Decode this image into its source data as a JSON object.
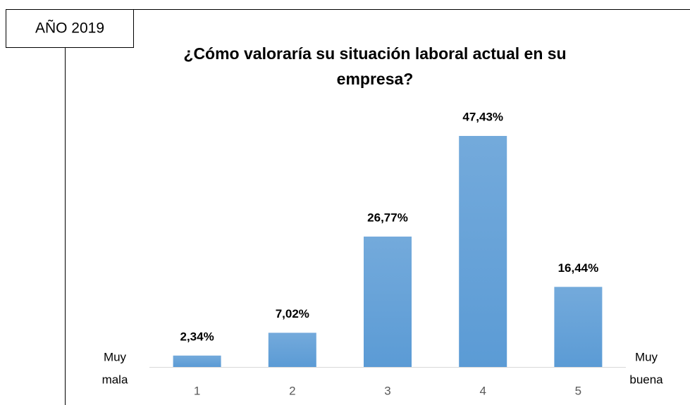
{
  "chart_data": {
    "type": "bar",
    "title": [
      "¿Cómo valoraría su situación laboral actual en su",
      "empresa?"
    ],
    "categories": [
      "1",
      "2",
      "3",
      "4",
      "5"
    ],
    "values": [
      2.34,
      7.02,
      26.77,
      47.43,
      16.44
    ],
    "value_labels": [
      "2,34%",
      "7,02%",
      "26,77%",
      "47,43%",
      "16,44%"
    ],
    "color": "#5b9bd5",
    "annotations": {
      "box": "AÑO 2019",
      "low": [
        "Muy",
        "mala"
      ],
      "high": [
        "Muy",
        "buena"
      ]
    }
  }
}
